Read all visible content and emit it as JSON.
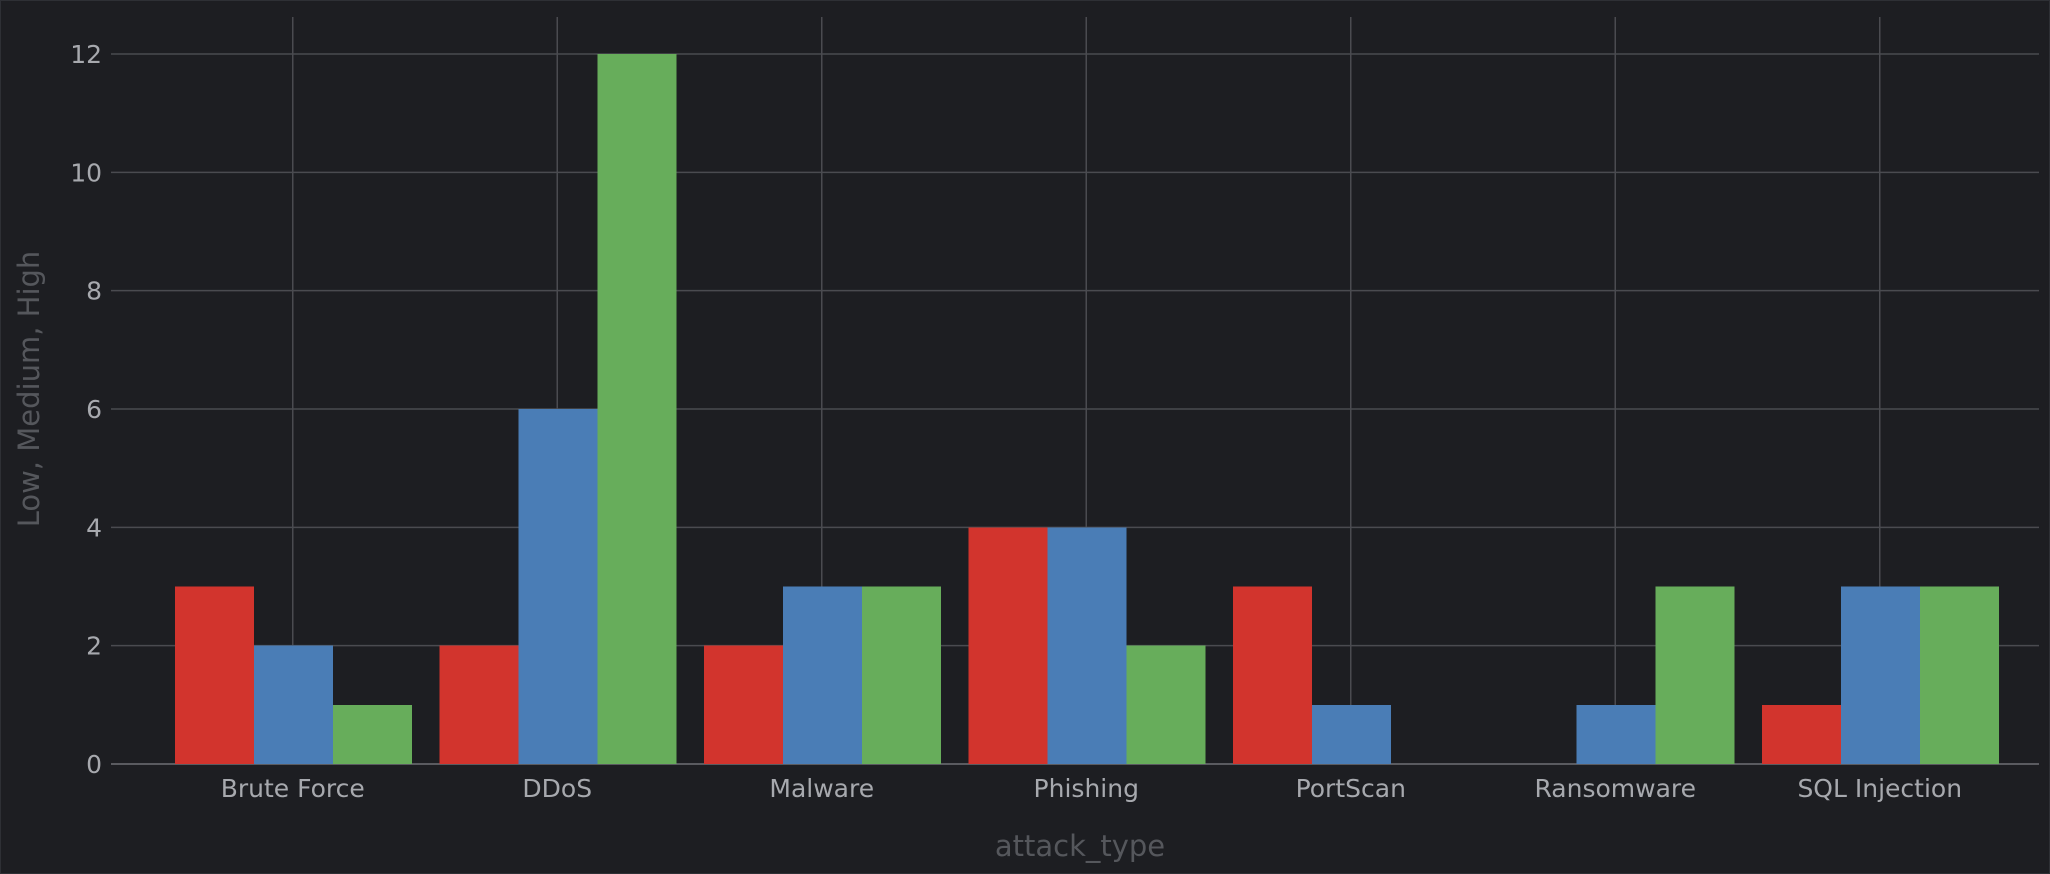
{
  "chart_data": {
    "type": "bar",
    "title": "",
    "xlabel": "attack_type",
    "ylabel": "Low, Medium, High",
    "categories": [
      "Brute Force",
      "DDoS",
      "Malware",
      "Phishing",
      "PortScan",
      "Ransomware",
      "SQL Injection"
    ],
    "series": [
      {
        "color": "#d2342d",
        "values": [
          3,
          2,
          2,
          4,
          3,
          0,
          1
        ]
      },
      {
        "color": "#4a7db6",
        "values": [
          2,
          6,
          3,
          4,
          1,
          1,
          3
        ]
      },
      {
        "color": "#67ad5b",
        "values": [
          1,
          12,
          3,
          2,
          0,
          3,
          3
        ]
      }
    ],
    "ylim": [
      0,
      12
    ],
    "yticks": [
      0,
      2,
      4,
      6,
      8,
      10,
      12
    ],
    "grid": true,
    "legend": "none"
  }
}
